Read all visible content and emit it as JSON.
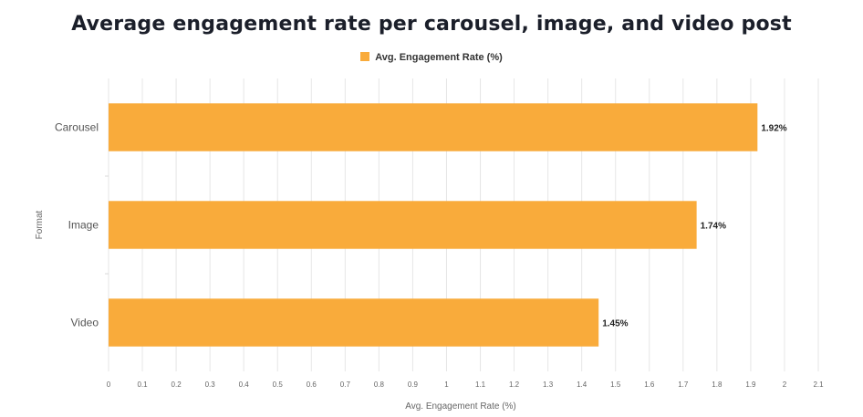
{
  "chart_data": {
    "type": "bar",
    "orientation": "horizontal",
    "title": "Average engagement rate per carousel, image, and video post",
    "categories": [
      "Carousel",
      "Image",
      "Video"
    ],
    "series": [
      {
        "name": "Avg. Engagement Rate (%)",
        "values": [
          1.92,
          1.74,
          1.45
        ],
        "data_labels": [
          "1.92%",
          "1.74%",
          "1.45%"
        ],
        "color": "#f9ab3b"
      }
    ],
    "xlabel": "Avg. Engagement Rate (%)",
    "ylabel": "Format",
    "xlim": [
      0,
      2.1
    ],
    "x_ticks": [
      0,
      0.1,
      0.2,
      0.3,
      0.4,
      0.5,
      0.6,
      0.7,
      0.8,
      0.9,
      1,
      1.1,
      1.2,
      1.3,
      1.4,
      1.5,
      1.6,
      1.7,
      1.8,
      1.9,
      2,
      2.1
    ],
    "x_tick_labels": [
      "0",
      "0.1",
      "0.2",
      "0.3",
      "0.4",
      "0.5",
      "0.6",
      "0.7",
      "0.8",
      "0.9",
      "1",
      "1.1",
      "1.2",
      "1.3",
      "1.4",
      "1.5",
      "1.6",
      "1.7",
      "1.8",
      "1.9",
      "2",
      "2.1"
    ],
    "grid": true,
    "legend_position": "top-center"
  },
  "colors": {
    "bar": "#f9ab3b",
    "grid": "#e6e6e6",
    "title": "#1b1f2a"
  }
}
